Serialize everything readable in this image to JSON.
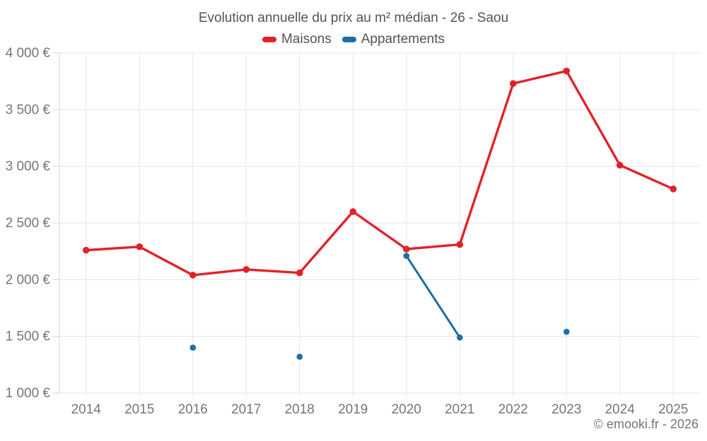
{
  "chart_data": {
    "type": "line",
    "title": "Evolution annuelle du prix au m² médian - 26 - Saou",
    "x": [
      2014,
      2015,
      2016,
      2017,
      2018,
      2019,
      2020,
      2021,
      2022,
      2023,
      2024,
      2025
    ],
    "series": [
      {
        "name": "Maisons",
        "color": "#e02329",
        "values": [
          2260,
          2290,
          2040,
          2090,
          2060,
          2600,
          2270,
          2310,
          3730,
          3840,
          3010,
          2800
        ]
      },
      {
        "name": "Appartements",
        "color": "#1c6ea4",
        "values": [
          null,
          null,
          1400,
          null,
          1320,
          null,
          2210,
          1490,
          null,
          1540,
          null,
          null
        ]
      }
    ],
    "ylim": [
      1000,
      4000
    ],
    "y_ticks": {
      "values": [
        1000,
        1500,
        2000,
        2500,
        3000,
        3500,
        4000
      ],
      "labels": [
        "1 000 €",
        "1 500 €",
        "2 000 €",
        "2 500 €",
        "3 000 €",
        "3 500 €",
        "4 000 €"
      ]
    },
    "grid": true,
    "legend_position": "top"
  },
  "footer": {
    "copyright": "© emooki.fr - 2026"
  },
  "colors": {
    "grid_line": "#ececec",
    "axis_line": "#dedede",
    "axis_label": "#767676",
    "title_text": "#545454",
    "footer_text": "#757575"
  }
}
